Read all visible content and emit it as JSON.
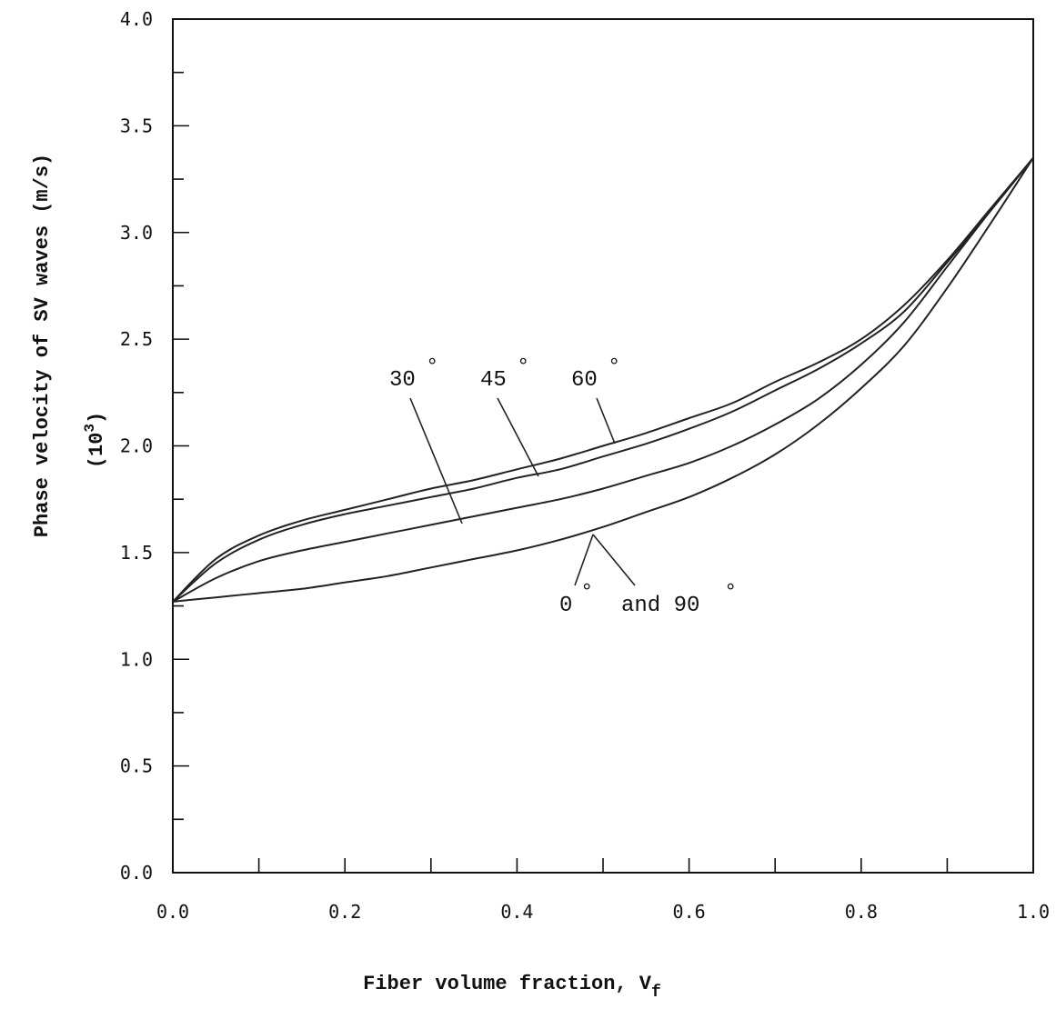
{
  "chart_data": {
    "type": "line",
    "xlabel": "Fiber volume fraction, V",
    "xlabel_sub": "f",
    "ylabel": "Phase velocity of SV waves  (m/s)",
    "ylabel_scale": "(10",
    "ylabel_scale_exp": "3",
    "ylabel_scale_close": ")",
    "xlim": [
      0.0,
      1.0
    ],
    "ylim": [
      0.0,
      4.0
    ],
    "x_ticks": [
      "0.0",
      "0.2",
      "0.4",
      "0.6",
      "0.8",
      "1.0"
    ],
    "y_ticks": [
      "0.0",
      "0.5",
      "1.0",
      "1.5",
      "2.0",
      "2.5",
      "3.0",
      "3.5",
      "4.0"
    ],
    "x_tick_values": [
      0.0,
      0.2,
      0.4,
      0.6,
      0.8,
      1.0
    ],
    "y_tick_values": [
      0.0,
      0.5,
      1.0,
      1.5,
      2.0,
      2.5,
      3.0,
      3.5,
      4.0
    ],
    "grid": false,
    "x": [
      0.0,
      0.05,
      0.1,
      0.15,
      0.2,
      0.25,
      0.3,
      0.35,
      0.4,
      0.45,
      0.5,
      0.55,
      0.6,
      0.65,
      0.7,
      0.75,
      0.8,
      0.85,
      0.9,
      0.95,
      1.0
    ],
    "series": [
      {
        "name": "0° and 90°",
        "values": [
          1.27,
          1.29,
          1.31,
          1.33,
          1.36,
          1.39,
          1.43,
          1.47,
          1.51,
          1.56,
          1.62,
          1.69,
          1.76,
          1.85,
          1.96,
          2.1,
          2.27,
          2.47,
          2.74,
          3.04,
          3.35
        ]
      },
      {
        "name": "30°",
        "values": [
          1.27,
          1.38,
          1.46,
          1.51,
          1.55,
          1.59,
          1.63,
          1.67,
          1.71,
          1.75,
          1.8,
          1.86,
          1.92,
          2.0,
          2.1,
          2.22,
          2.38,
          2.58,
          2.84,
          3.1,
          3.35
        ]
      },
      {
        "name": "45°",
        "values": [
          1.27,
          1.45,
          1.56,
          1.63,
          1.68,
          1.72,
          1.76,
          1.8,
          1.85,
          1.89,
          1.95,
          2.01,
          2.08,
          2.16,
          2.26,
          2.36,
          2.48,
          2.63,
          2.86,
          3.1,
          3.35
        ]
      },
      {
        "name": "60°",
        "values": [
          1.27,
          1.47,
          1.58,
          1.65,
          1.7,
          1.75,
          1.8,
          1.84,
          1.89,
          1.94,
          2.0,
          2.06,
          2.13,
          2.2,
          2.3,
          2.39,
          2.5,
          2.66,
          2.87,
          3.11,
          3.35
        ]
      }
    ],
    "annotations": [
      {
        "label": "30",
        "deg": "°",
        "series": "30°"
      },
      {
        "label": "45",
        "deg": "°",
        "series": "45°"
      },
      {
        "label": "60",
        "deg": "°",
        "series": "60°"
      },
      {
        "label": "0",
        "deg": "°",
        "label2": "and 90",
        "deg2": "°",
        "series": "0° and 90°"
      }
    ]
  }
}
